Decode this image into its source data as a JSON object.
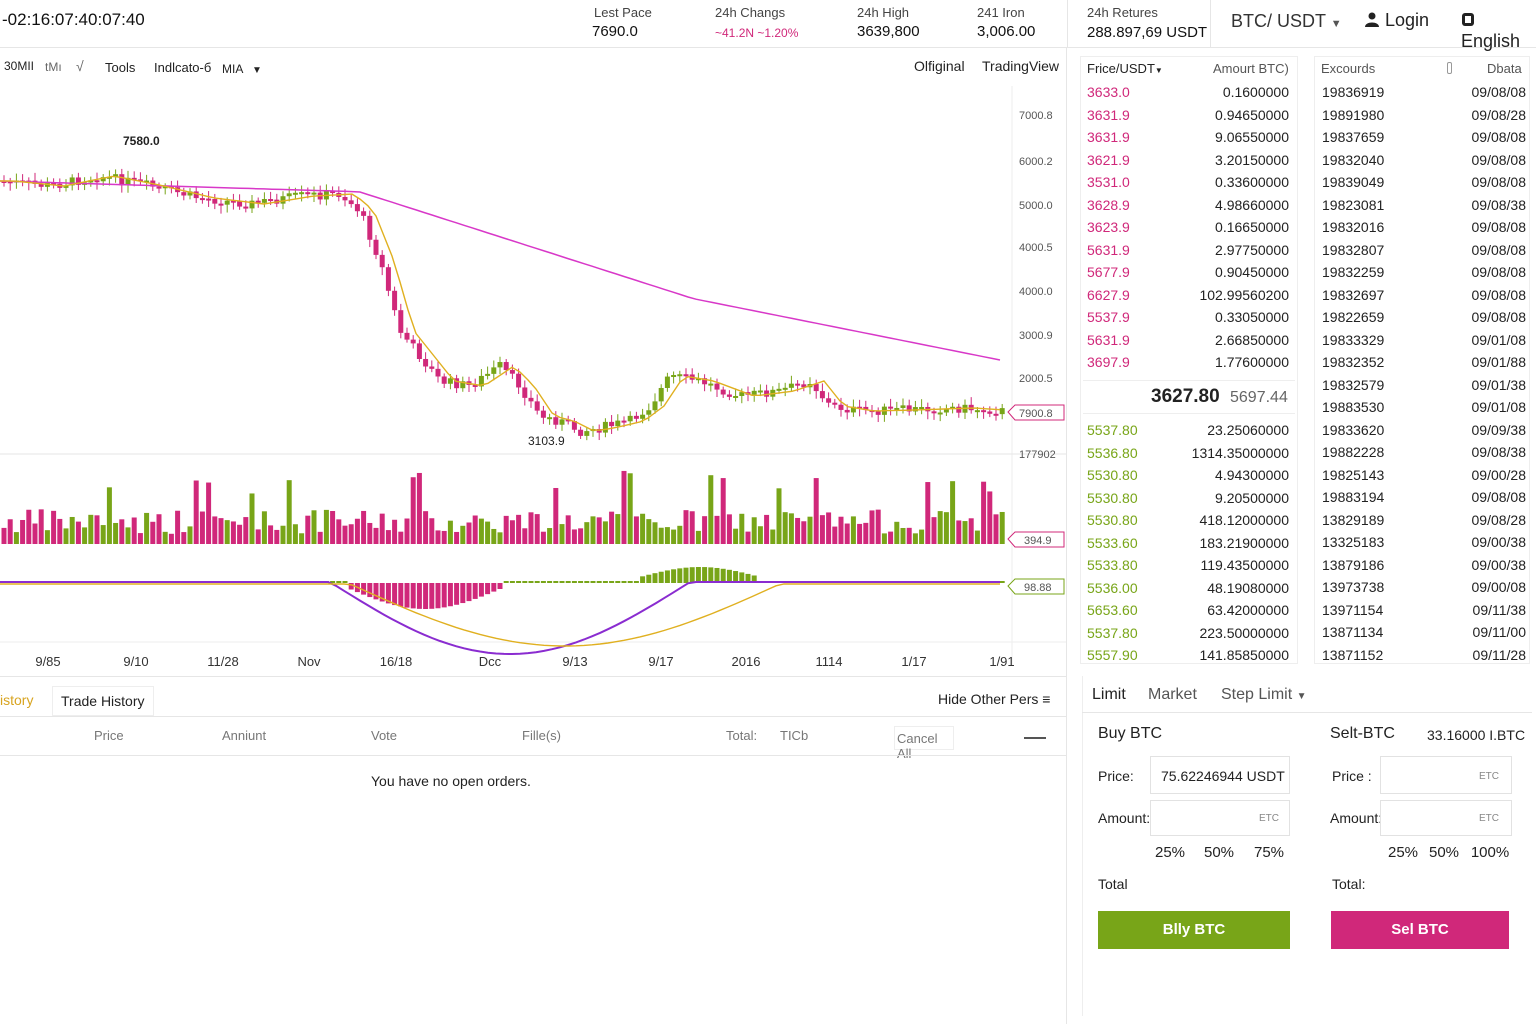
{
  "header": {
    "clock": "-02:16:07:40:07:40",
    "stats": [
      {
        "label": "Lest Pace",
        "value": "7690.0"
      },
      {
        "label": "24h Changs",
        "value": "~41.2N ~1.20%"
      },
      {
        "label": "24h High",
        "value": "3639,800"
      },
      {
        "label": "241 Iron",
        "value": "3,006.00"
      },
      {
        "label": "24h Retures",
        "value": "288.897,69 USDT"
      }
    ],
    "pair": "BTC/ USDT",
    "login": "Login",
    "language": "English"
  },
  "toolbar": {
    "items": [
      "30MII",
      "tMı",
      "√",
      "Tools",
      "Indlcato-б",
      "MIA"
    ],
    "view_original": "Olfiginal",
    "view_tradingview": "TradingView"
  },
  "chart": {
    "y_ticks": [
      "7000.8",
      "6000.2",
      "5000.0",
      "4000.5",
      "4000.0",
      "3000.9",
      "2000.5"
    ],
    "price_tag": "7900.8",
    "high_label": "7580.0",
    "low_label": "3103.9",
    "volume_top_label": "177902",
    "volume_tag": "394.9",
    "macd_tag": "98.88",
    "x_labels": [
      "9/85",
      "9/10",
      "11/28",
      "Nov",
      "16/18",
      "Dcc",
      "9/13",
      "9/17",
      "2016",
      "1114",
      "1/17",
      "1/91"
    ],
    "colors": {
      "up": "#78a518",
      "down": "#d0287a",
      "ma_fast": "#e0b020",
      "ma_slow": "#d838c8",
      "macd": "#8a2cd0"
    }
  },
  "orderbook": {
    "col_price": "Frice/USDT",
    "col_amount": "Amourt BTC)",
    "asks": [
      {
        "price": "3633.0",
        "amount": "0.1600000"
      },
      {
        "price": "3631.9",
        "amount": "0.94650000"
      },
      {
        "price": "3631.9",
        "amount": "9.06550000"
      },
      {
        "price": "3621.9",
        "amount": "3.20150000"
      },
      {
        "price": "3531.0",
        "amount": "0.33600000"
      },
      {
        "price": "3628.9",
        "amount": "4.98660000"
      },
      {
        "price": "3623.9",
        "amount": "0.16650000"
      },
      {
        "price": "5631.9",
        "amount": "2.97750000"
      },
      {
        "price": "5677.9",
        "amount": "0.90450000"
      },
      {
        "price": "6627.9",
        "amount": "102.99560200"
      },
      {
        "price": "5537.9",
        "amount": "0.33050000"
      },
      {
        "price": "5631.9",
        "amount": "2.66850000"
      },
      {
        "price": "3697.9",
        "amount": "1.77600000"
      }
    ],
    "last_price": "3627.80",
    "last_price_alt": "5697.44",
    "bids": [
      {
        "price": "5537.80",
        "amount": "23.25060000"
      },
      {
        "price": "5536.80",
        "amount": "1314.35000000"
      },
      {
        "price": "5530.80",
        "amount": "4.94300000"
      },
      {
        "price": "5530.80",
        "amount": "9.20500000"
      },
      {
        "price": "5530.80",
        "amount": "418.12000000"
      },
      {
        "price": "5533.60",
        "amount": "183.21900000"
      },
      {
        "price": "5533.80",
        "amount": "119.43500000"
      },
      {
        "price": "5536.00",
        "amount": "48.19080000"
      },
      {
        "price": "5653.60",
        "amount": "63.42000000"
      },
      {
        "price": "5537.80",
        "amount": "223.50000000"
      },
      {
        "price": "5557.90",
        "amount": "141.85850000"
      }
    ]
  },
  "trades": {
    "col_id": "Excourds",
    "col_date": "Dbata",
    "rows": [
      {
        "id": "19836919",
        "date": "09/08/08"
      },
      {
        "id": "19891980",
        "date": "09/08/28"
      },
      {
        "id": "19837659",
        "date": "09/08/08"
      },
      {
        "id": "19832040",
        "date": "09/08/08"
      },
      {
        "id": "19839049",
        "date": "09/08/08"
      },
      {
        "id": "19823081",
        "date": "09/08/38"
      },
      {
        "id": "19832016",
        "date": "09/08/08"
      },
      {
        "id": "19832807",
        "date": "09/08/08"
      },
      {
        "id": "19832259",
        "date": "09/08/08"
      },
      {
        "id": "19832697",
        "date": "09/08/08"
      },
      {
        "id": "19822659",
        "date": "09/08/08"
      },
      {
        "id": "19833329",
        "date": "09/01/08"
      },
      {
        "id": "19832352",
        "date": "09/01/88"
      },
      {
        "id": "19832579",
        "date": "09/01/38"
      },
      {
        "id": "19883530",
        "date": "09/01/08"
      },
      {
        "id": "19833620",
        "date": "09/09/38"
      },
      {
        "id": "19882228",
        "date": "09/08/38"
      },
      {
        "id": "19825143",
        "date": "09/00/28"
      },
      {
        "id": "19883194",
        "date": "09/08/08"
      },
      {
        "id": "13829189",
        "date": "09/08/28"
      },
      {
        "id": "13325183",
        "date": "09/00/38"
      },
      {
        "id": "13879186",
        "date": "09/00/38"
      },
      {
        "id": "13973738",
        "date": "09/00/08"
      },
      {
        "id": "13971154",
        "date": "09/11/38"
      },
      {
        "id": "13871134",
        "date": "09/11/00"
      },
      {
        "id": "13871152",
        "date": "09/11/28"
      }
    ]
  },
  "orders": {
    "tab_open": "istory",
    "tab_trade": "Trade History",
    "hide_other": "Hide Other Pers ≡",
    "columns": [
      "Price",
      "Anniunt",
      "Vote",
      "Fille(s)",
      "Total:",
      "TICb"
    ],
    "cancel_all": "Cancel All",
    "empty": "You have no open orders."
  },
  "trade_form": {
    "tabs": [
      "Limit",
      "Market",
      "Step Limit"
    ],
    "buy_title": "Buy BTC",
    "sell_title": "Selt-BTC",
    "sell_balance": "33.16000 I.BTC",
    "price_label_buy": "Price:",
    "price_label_sell": "Price :",
    "amount_label": "Amount:",
    "buy_price_value": "75.62246944 USDT",
    "unit": "ETC",
    "buy_pcts": [
      "25%",
      "50%",
      "75%"
    ],
    "sell_pcts": [
      "25%",
      "50%",
      "100%"
    ],
    "total_buy": "Total",
    "total_sell": "Total:",
    "buy_button": "Blly BTC",
    "sell_button": "Sel BTC"
  }
}
